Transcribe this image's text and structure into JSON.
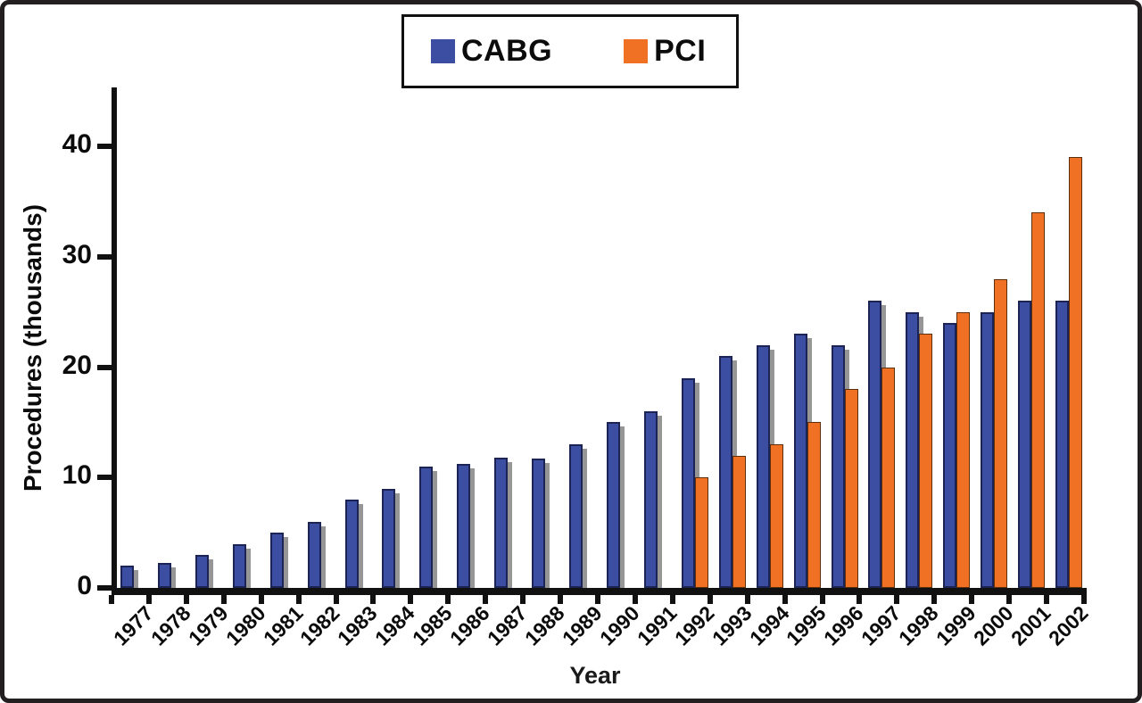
{
  "figure": {
    "background": "#ffffff",
    "frame_color": "#231f20"
  },
  "legend": {
    "items": [
      {
        "label": "CABG",
        "color": "#3b4ea2"
      },
      {
        "label": "PCI",
        "color": "#f07024"
      }
    ]
  },
  "axes": {
    "y_label": "Procedures (thousands)",
    "x_label": "Year"
  },
  "chart_data": {
    "type": "bar",
    "title": "",
    "xlabel": "Year",
    "ylabel": "Procedures (thousands)",
    "categories": [
      "1977",
      "1978",
      "1979",
      "1980",
      "1981",
      "1982",
      "1983",
      "1984",
      "1985",
      "1986",
      "1987",
      "1988",
      "1989",
      "1990",
      "1991",
      "1992",
      "1993",
      "1994",
      "1995",
      "1996",
      "1997",
      "1998",
      "1999",
      "2000",
      "2001",
      "2002"
    ],
    "series": [
      {
        "name": "CABG",
        "color": "#3b4ea2",
        "values": [
          2,
          2.3,
          3,
          4,
          5,
          6,
          8,
          9,
          11,
          11.2,
          11.8,
          11.7,
          13,
          15,
          16,
          19,
          21,
          22,
          23,
          22,
          26,
          25,
          24,
          25,
          26,
          26
        ]
      },
      {
        "name": "PCI",
        "color": "#f07024",
        "values": [
          null,
          null,
          null,
          null,
          null,
          null,
          null,
          null,
          null,
          null,
          null,
          null,
          null,
          null,
          null,
          10,
          12,
          13,
          15,
          18,
          20,
          23,
          25,
          28,
          34,
          39
        ]
      }
    ],
    "ylim": [
      0,
      44
    ],
    "yticks": [
      0,
      10,
      20,
      30,
      40
    ],
    "grid": false,
    "legend_position": "top-center",
    "bar_style": "grouped with gray drop shadow"
  }
}
